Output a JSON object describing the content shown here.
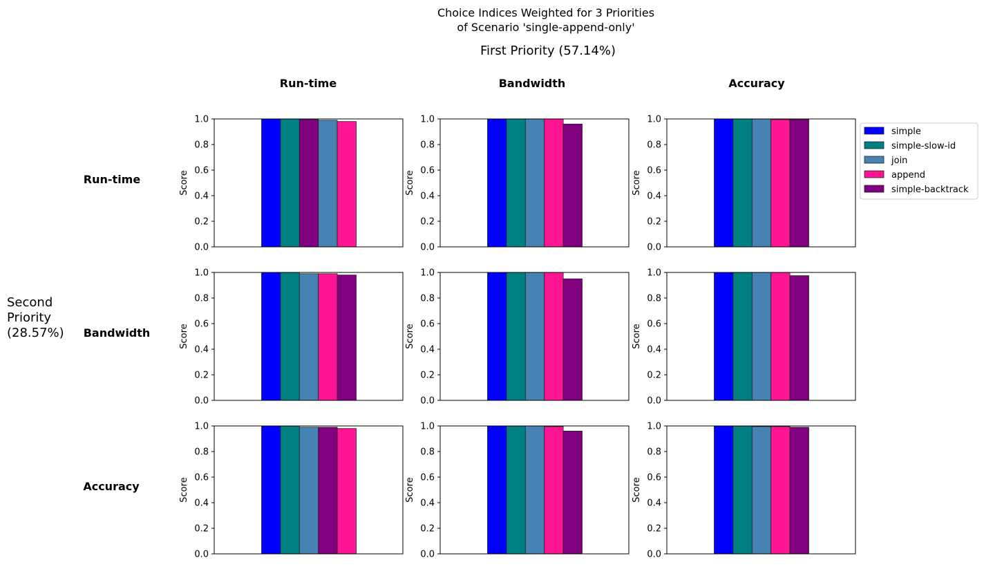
{
  "figure": {
    "title_line1": "Choice Indices Weighted for 3 Priorities",
    "title_line2": "of Scenario 'single-append-only'",
    "first_priority_label": "First Priority (57.14%)",
    "second_priority_label": [
      "Second",
      "Priority",
      "(28.57%)"
    ],
    "column_headers": [
      "Run-time",
      "Bandwidth",
      "Accuracy"
    ],
    "row_headers": [
      "Run-time",
      "Bandwidth",
      "Accuracy"
    ],
    "ylabel": "Score",
    "yticks": [
      "0.0",
      "0.2",
      "0.4",
      "0.6",
      "0.8",
      "1.0"
    ]
  },
  "legend": {
    "placement": "right of top-right subplot",
    "entries": [
      {
        "label": "simple",
        "color": "#0000ff"
      },
      {
        "label": "simple-slow-id",
        "color": "#008080"
      },
      {
        "label": "join",
        "color": "#4682b4"
      },
      {
        "label": "append",
        "color": "#ff1493"
      },
      {
        "label": "simple-backtrack",
        "color": "#800080"
      }
    ]
  },
  "colors": {
    "simple": "#0000ff",
    "simple-slow-id": "#008080",
    "join": "#4682b4",
    "append": "#ff1493",
    "simple-backtrack": "#800080"
  },
  "chart_data": [
    {
      "type": "bar",
      "row": "Run-time",
      "col": "Run-time",
      "ylabel": "Score",
      "ylim": [
        0,
        1
      ],
      "series": [
        {
          "name": "simple",
          "value": 1.0
        },
        {
          "name": "simple-slow-id",
          "value": 1.0
        },
        {
          "name": "simple-backtrack",
          "value": 0.995
        },
        {
          "name": "join",
          "value": 0.99
        },
        {
          "name": "append",
          "value": 0.98
        }
      ]
    },
    {
      "type": "bar",
      "row": "Run-time",
      "col": "Bandwidth",
      "ylabel": "Score",
      "ylim": [
        0,
        1
      ],
      "series": [
        {
          "name": "simple",
          "value": 1.0
        },
        {
          "name": "simple-slow-id",
          "value": 1.0
        },
        {
          "name": "join",
          "value": 1.0
        },
        {
          "name": "append",
          "value": 1.0
        },
        {
          "name": "simple-backtrack",
          "value": 0.96
        }
      ]
    },
    {
      "type": "bar",
      "row": "Run-time",
      "col": "Accuracy",
      "ylabel": "Score",
      "ylim": [
        0,
        1
      ],
      "series": [
        {
          "name": "simple",
          "value": 1.0
        },
        {
          "name": "simple-slow-id",
          "value": 1.0
        },
        {
          "name": "join",
          "value": 1.0
        },
        {
          "name": "append",
          "value": 0.995
        },
        {
          "name": "simple-backtrack",
          "value": 0.995
        }
      ]
    },
    {
      "type": "bar",
      "row": "Bandwidth",
      "col": "Run-time",
      "ylabel": "Score",
      "ylim": [
        0,
        1
      ],
      "series": [
        {
          "name": "simple",
          "value": 1.0
        },
        {
          "name": "simple-slow-id",
          "value": 1.0
        },
        {
          "name": "join",
          "value": 0.99
        },
        {
          "name": "append",
          "value": 0.99
        },
        {
          "name": "simple-backtrack",
          "value": 0.98
        }
      ]
    },
    {
      "type": "bar",
      "row": "Bandwidth",
      "col": "Bandwidth",
      "ylabel": "Score",
      "ylim": [
        0,
        1
      ],
      "series": [
        {
          "name": "simple",
          "value": 1.0
        },
        {
          "name": "simple-slow-id",
          "value": 1.0
        },
        {
          "name": "join",
          "value": 1.0
        },
        {
          "name": "append",
          "value": 1.0
        },
        {
          "name": "simple-backtrack",
          "value": 0.95
        }
      ]
    },
    {
      "type": "bar",
      "row": "Bandwidth",
      "col": "Accuracy",
      "ylabel": "Score",
      "ylim": [
        0,
        1
      ],
      "series": [
        {
          "name": "simple",
          "value": 1.0
        },
        {
          "name": "simple-slow-id",
          "value": 1.0
        },
        {
          "name": "join",
          "value": 1.0
        },
        {
          "name": "append",
          "value": 1.0
        },
        {
          "name": "simple-backtrack",
          "value": 0.975
        }
      ]
    },
    {
      "type": "bar",
      "row": "Accuracy",
      "col": "Run-time",
      "ylabel": "Score",
      "ylim": [
        0,
        1
      ],
      "series": [
        {
          "name": "simple",
          "value": 1.0
        },
        {
          "name": "simple-slow-id",
          "value": 1.0
        },
        {
          "name": "join",
          "value": 0.99
        },
        {
          "name": "simple-backtrack",
          "value": 0.99
        },
        {
          "name": "append",
          "value": 0.98
        }
      ]
    },
    {
      "type": "bar",
      "row": "Accuracy",
      "col": "Bandwidth",
      "ylabel": "Score",
      "ylim": [
        0,
        1
      ],
      "series": [
        {
          "name": "simple",
          "value": 1.0
        },
        {
          "name": "simple-slow-id",
          "value": 1.0
        },
        {
          "name": "join",
          "value": 1.0
        },
        {
          "name": "append",
          "value": 0.995
        },
        {
          "name": "simple-backtrack",
          "value": 0.96
        }
      ]
    },
    {
      "type": "bar",
      "row": "Accuracy",
      "col": "Accuracy",
      "ylabel": "Score",
      "ylim": [
        0,
        1
      ],
      "series": [
        {
          "name": "simple",
          "value": 1.0
        },
        {
          "name": "simple-slow-id",
          "value": 1.0
        },
        {
          "name": "join",
          "value": 0.995
        },
        {
          "name": "append",
          "value": 0.995
        },
        {
          "name": "simple-backtrack",
          "value": 0.99
        }
      ]
    }
  ]
}
